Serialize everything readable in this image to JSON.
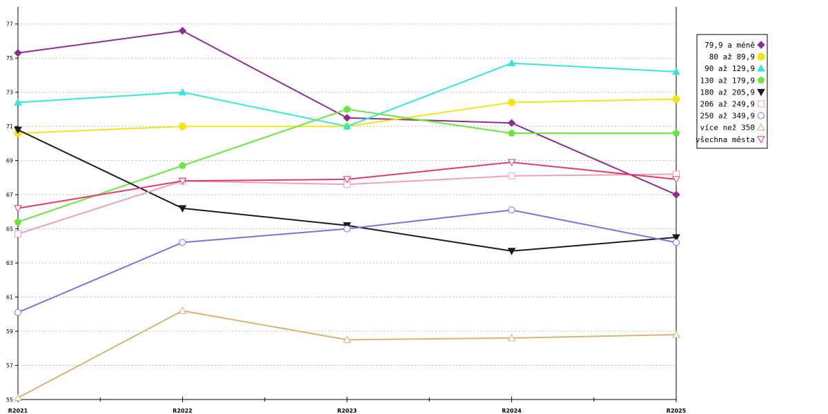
{
  "chart_data": {
    "type": "line",
    "title": "",
    "xlabel": "",
    "ylabel": "",
    "categories": [
      "R2021",
      "R2022",
      "R2023",
      "R2024",
      "R2025"
    ],
    "ylim": [
      55,
      78
    ],
    "yticks": [
      55,
      57,
      59,
      61,
      63,
      65,
      67,
      69,
      71,
      73,
      75,
      77
    ],
    "grid": "horizontal dashed",
    "legend_position": "right",
    "series": [
      {
        "name": "79,9 a méně",
        "color": "#8e2d91",
        "marker": "diamond",
        "values": [
          75.3,
          76.6,
          71.5,
          71.2,
          67.0
        ]
      },
      {
        "name": "80 až 89,9",
        "color": "#f2e516",
        "marker": "circle-filled",
        "values": [
          70.6,
          71.0,
          71.0,
          72.4,
          72.6
        ]
      },
      {
        "name": "90 až 129,9",
        "color": "#34e6dc",
        "marker": "triangle-up-filled",
        "values": [
          72.4,
          73.0,
          71.0,
          74.7,
          74.2
        ]
      },
      {
        "name": "130 až 179,9",
        "color": "#66e83a",
        "marker": "pentagon-filled",
        "values": [
          65.4,
          68.7,
          72.0,
          70.6,
          70.6
        ]
      },
      {
        "name": "180 až 205,9",
        "color": "#1a1a1a",
        "marker": "triangle-down-filled",
        "values": [
          70.8,
          66.2,
          65.2,
          63.7,
          64.5
        ]
      },
      {
        "name": "206 až 249,9",
        "color": "#f0a0bd",
        "marker": "square-open",
        "values": [
          64.7,
          67.8,
          67.6,
          68.1,
          68.2
        ]
      },
      {
        "name": "250 až 349,9",
        "color": "#7b72e0",
        "marker": "circle-open",
        "values": [
          60.1,
          64.2,
          65.0,
          66.1,
          64.2
        ]
      },
      {
        "name": "více než 350",
        "color": "#d9b370",
        "marker": "triangle-up-open",
        "values": [
          55.1,
          60.2,
          58.5,
          58.6,
          58.8
        ]
      },
      {
        "name": "všechna města",
        "color": "#e8386a",
        "marker": "triangle-down-open",
        "values": [
          66.2,
          67.8,
          67.9,
          68.9,
          67.9
        ]
      }
    ]
  }
}
